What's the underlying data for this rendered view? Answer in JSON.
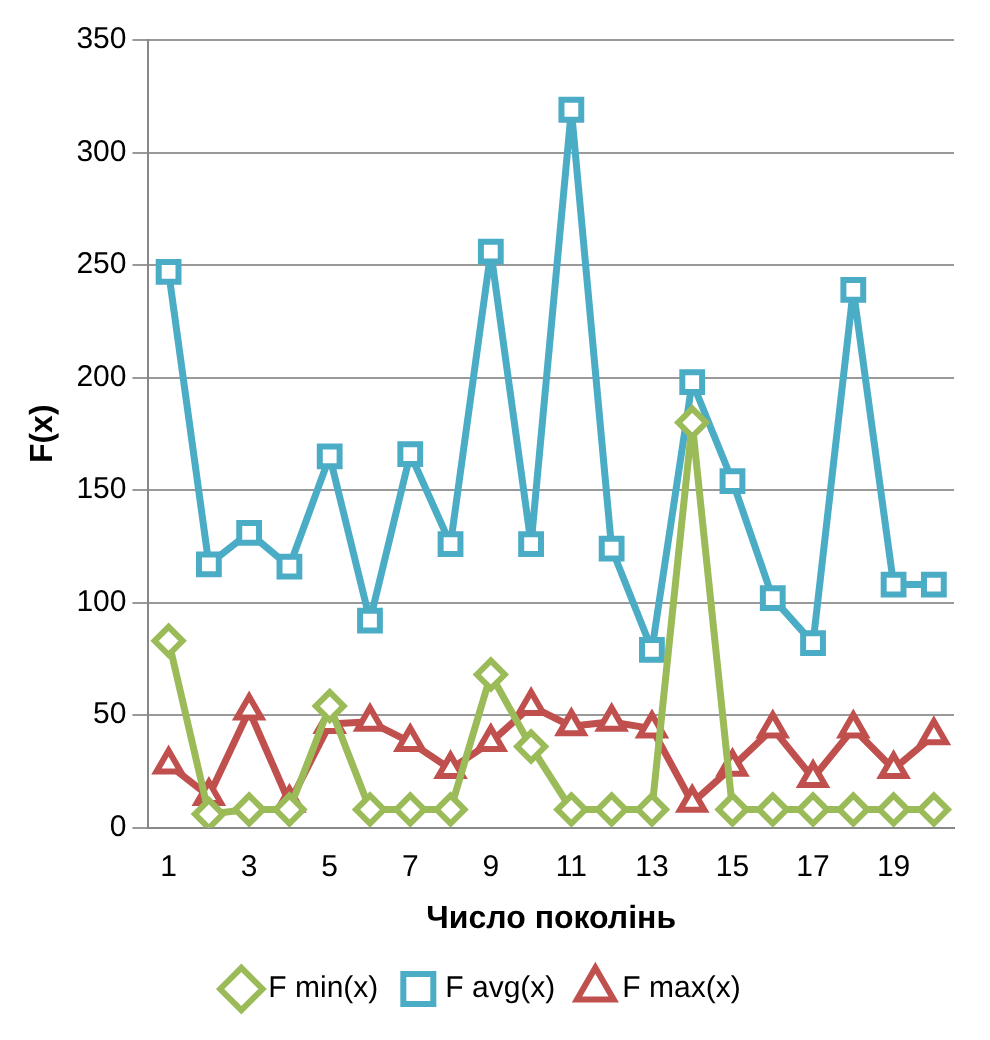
{
  "chart_data": {
    "type": "line",
    "xlabel": "Число поколінь",
    "ylabel": "F(x)",
    "x": [
      1,
      2,
      3,
      4,
      5,
      6,
      7,
      8,
      9,
      10,
      11,
      12,
      13,
      14,
      15,
      16,
      17,
      18,
      19,
      20
    ],
    "xlim": [
      0.5,
      20.5
    ],
    "xticks": [
      1,
      3,
      5,
      7,
      9,
      11,
      13,
      15,
      17,
      19
    ],
    "series": [
      {
        "name": "F min(x)",
        "color": "#9bbb59",
        "marker": "diamond",
        "values": [
          83,
          6,
          8,
          8,
          54,
          8,
          8,
          8,
          68,
          36,
          8,
          8,
          8,
          180,
          8,
          8,
          8,
          8,
          8,
          8
        ]
      },
      {
        "name": "F avg(x)",
        "color": "#4bacc6",
        "marker": "square",
        "values": [
          247,
          117,
          131,
          116,
          165,
          92,
          166,
          126,
          256,
          126,
          319,
          124,
          79,
          198,
          154,
          102,
          82,
          239,
          108,
          108
        ]
      },
      {
        "name": "F max(x)",
        "color": "#c0504d",
        "marker": "triangle",
        "values": [
          28,
          14,
          52,
          11,
          46,
          47,
          38,
          26,
          38,
          54,
          45,
          47,
          44,
          11,
          27,
          44,
          22,
          44,
          26,
          41
        ]
      }
    ],
    "ylim": [
      0,
      350
    ],
    "yticks": [
      0,
      50,
      100,
      150,
      200,
      250,
      300,
      350
    ],
    "grid": "y",
    "legend": "bottom"
  }
}
